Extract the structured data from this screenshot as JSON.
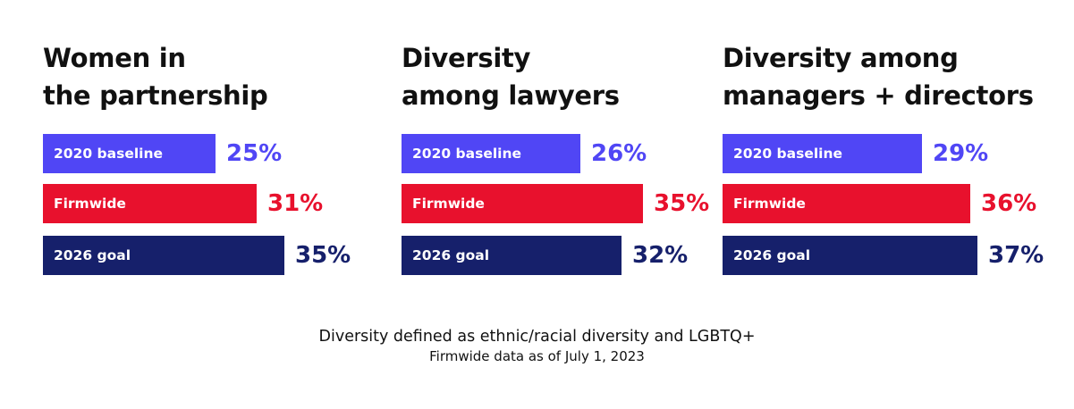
{
  "chart_data": [
    {
      "type": "bar",
      "orientation": "horizontal",
      "title_lines": [
        "Women in",
        "the partnership"
      ],
      "categories": [
        "2020 baseline",
        "Firmwide",
        "2026 goal"
      ],
      "values": [
        25,
        31,
        35
      ],
      "value_labels": [
        "25%",
        "31%",
        "35%"
      ],
      "unit": "%",
      "colors": [
        "#5046f5",
        "#e8112d",
        "#16206b"
      ]
    },
    {
      "type": "bar",
      "orientation": "horizontal",
      "title_lines": [
        "Diversity",
        "among lawyers"
      ],
      "categories": [
        "2020 baseline",
        "Firmwide",
        "2026 goal"
      ],
      "values": [
        26,
        35,
        32
      ],
      "value_labels": [
        "26%",
        "35%",
        "32%"
      ],
      "unit": "%",
      "colors": [
        "#5046f5",
        "#e8112d",
        "#16206b"
      ]
    },
    {
      "type": "bar",
      "orientation": "horizontal",
      "title_lines": [
        "Diversity among",
        "managers + directors"
      ],
      "categories": [
        "2020 baseline",
        "Firmwide",
        "2026 goal"
      ],
      "values": [
        29,
        36,
        37
      ],
      "value_labels": [
        "29%",
        "36%",
        "37%"
      ],
      "unit": "%",
      "colors": [
        "#5046f5",
        "#e8112d",
        "#16206b"
      ]
    }
  ],
  "footnotes": {
    "line1": "Diversity defined as ethnic/racial diversity and LGBTQ+",
    "line2": "Firmwide data as of July 1, 2023"
  }
}
